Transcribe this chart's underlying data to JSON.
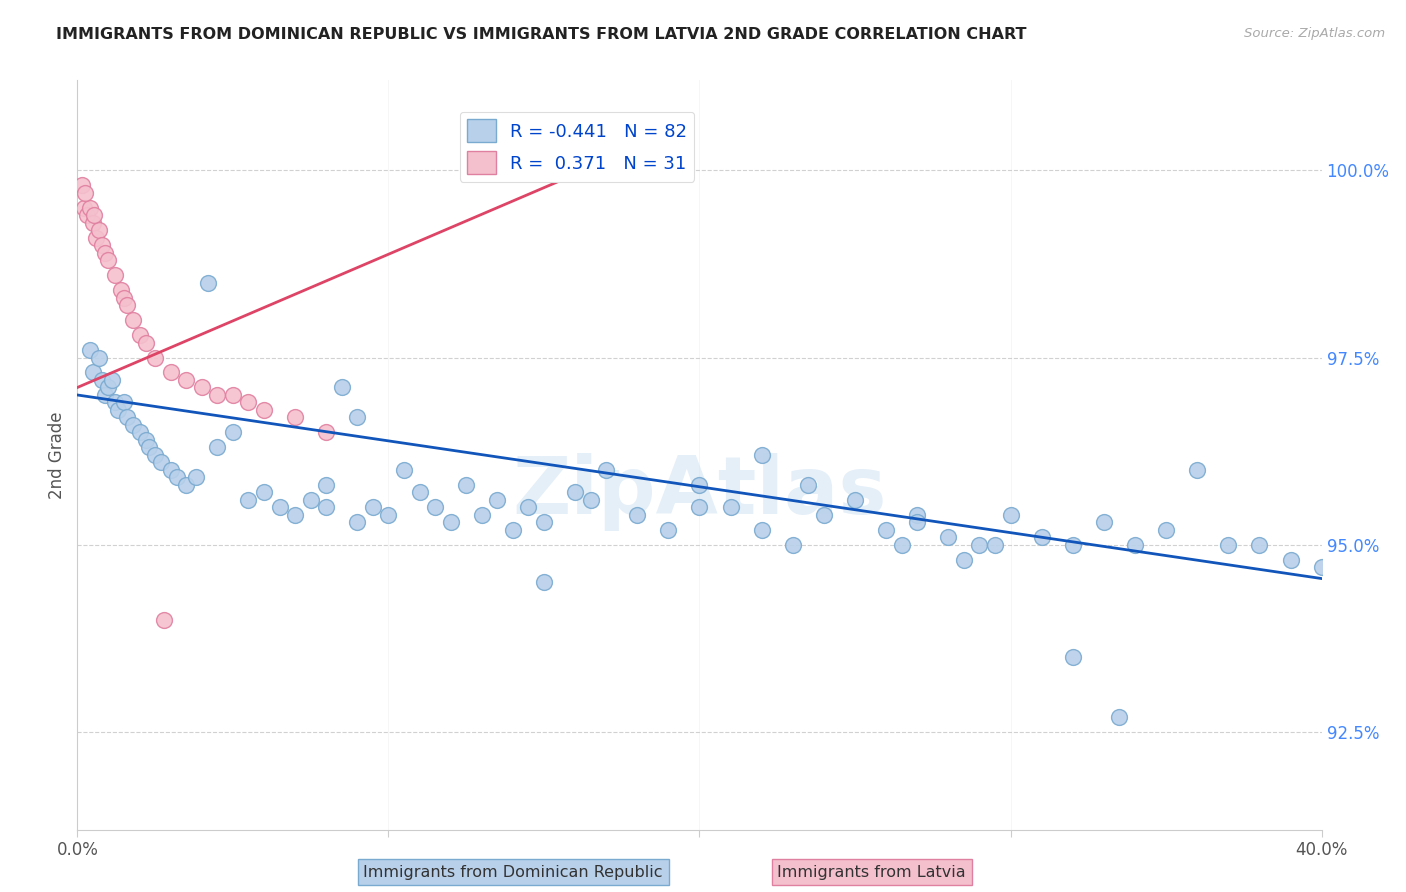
{
  "title": "IMMIGRANTS FROM DOMINICAN REPUBLIC VS IMMIGRANTS FROM LATVIA 2ND GRADE CORRELATION CHART",
  "source": "Source: ZipAtlas.com",
  "ylabel": "2nd Grade",
  "yticks": [
    92.5,
    95.0,
    97.5,
    100.0
  ],
  "ytick_labels": [
    "92.5%",
    "95.0%",
    "97.5%",
    "100.0%"
  ],
  "xmin": 0.0,
  "xmax": 40.0,
  "ymin": 91.2,
  "ymax": 101.2,
  "legend_line1": "R = -0.441   N = 82",
  "legend_line2": "R =  0.371   N = 31",
  "legend_blue_label": "Immigrants from Dominican Republic",
  "legend_pink_label": "Immigrants from Latvia",
  "blue_color": "#b8d0ea",
  "blue_edge": "#7aaad0",
  "pink_color": "#f5c0ce",
  "pink_edge": "#e080a0",
  "blue_line_color": "#1155bb",
  "pink_line_color": "#dd4466",
  "watermark": "ZipAtlas",
  "blue_line_x0": 0.0,
  "blue_line_y0": 97.0,
  "blue_line_x1": 40.0,
  "blue_line_y1": 94.55,
  "pink_line_x0": 0.0,
  "pink_line_y0": 97.1,
  "pink_line_x1": 18.0,
  "pink_line_y1": 100.3,
  "blue_x": [
    0.4,
    0.5,
    0.7,
    0.8,
    0.9,
    1.0,
    1.1,
    1.2,
    1.3,
    1.5,
    1.6,
    1.8,
    2.0,
    2.2,
    2.3,
    2.5,
    2.7,
    3.0,
    3.2,
    3.5,
    3.8,
    4.2,
    4.5,
    5.0,
    5.5,
    6.0,
    6.5,
    7.0,
    7.5,
    8.0,
    8.5,
    9.0,
    9.5,
    10.0,
    10.5,
    11.0,
    11.5,
    12.0,
    12.5,
    13.0,
    13.5,
    14.0,
    14.5,
    15.0,
    16.0,
    17.0,
    18.0,
    19.0,
    20.0,
    21.0,
    22.0,
    23.0,
    24.0,
    25.0,
    26.0,
    27.0,
    28.0,
    29.0,
    30.0,
    31.0,
    32.0,
    33.0,
    34.0,
    35.0,
    36.0,
    37.0,
    38.0,
    39.0,
    40.0,
    8.0,
    9.0,
    15.0,
    16.5,
    20.0,
    22.0,
    23.5,
    26.5,
    27.0,
    28.5,
    29.5,
    32.0,
    33.5
  ],
  "blue_y": [
    97.6,
    97.3,
    97.5,
    97.2,
    97.0,
    97.1,
    97.2,
    96.9,
    96.8,
    96.9,
    96.7,
    96.6,
    96.5,
    96.4,
    96.3,
    96.2,
    96.1,
    96.0,
    95.9,
    95.8,
    95.9,
    98.5,
    96.3,
    96.5,
    95.6,
    95.7,
    95.5,
    95.4,
    95.6,
    95.8,
    97.1,
    95.3,
    95.5,
    95.4,
    96.0,
    95.7,
    95.5,
    95.3,
    95.8,
    95.4,
    95.6,
    95.2,
    95.5,
    95.3,
    95.7,
    96.0,
    95.4,
    95.2,
    95.8,
    95.5,
    96.2,
    95.0,
    95.4,
    95.6,
    95.2,
    95.4,
    95.1,
    95.0,
    95.4,
    95.1,
    95.0,
    95.3,
    95.0,
    95.2,
    96.0,
    95.0,
    95.0,
    94.8,
    94.7,
    95.5,
    96.7,
    94.5,
    95.6,
    95.5,
    95.2,
    95.8,
    95.0,
    95.3,
    94.8,
    95.0,
    93.5,
    92.7
  ],
  "pink_x": [
    0.2,
    0.3,
    0.4,
    0.5,
    0.6,
    0.7,
    0.8,
    0.9,
    1.0,
    1.2,
    1.4,
    1.5,
    1.6,
    1.8,
    2.0,
    2.2,
    2.5,
    3.0,
    3.5,
    4.0,
    4.5,
    5.0,
    5.5,
    6.0,
    7.0,
    8.0,
    0.15,
    0.25,
    0.55,
    17.0,
    2.8
  ],
  "pink_y": [
    99.5,
    99.4,
    99.5,
    99.3,
    99.1,
    99.2,
    99.0,
    98.9,
    98.8,
    98.6,
    98.4,
    98.3,
    98.2,
    98.0,
    97.8,
    97.7,
    97.5,
    97.3,
    97.2,
    97.1,
    97.0,
    97.0,
    96.9,
    96.8,
    96.7,
    96.5,
    99.8,
    99.7,
    99.4,
    100.2,
    94.0
  ]
}
